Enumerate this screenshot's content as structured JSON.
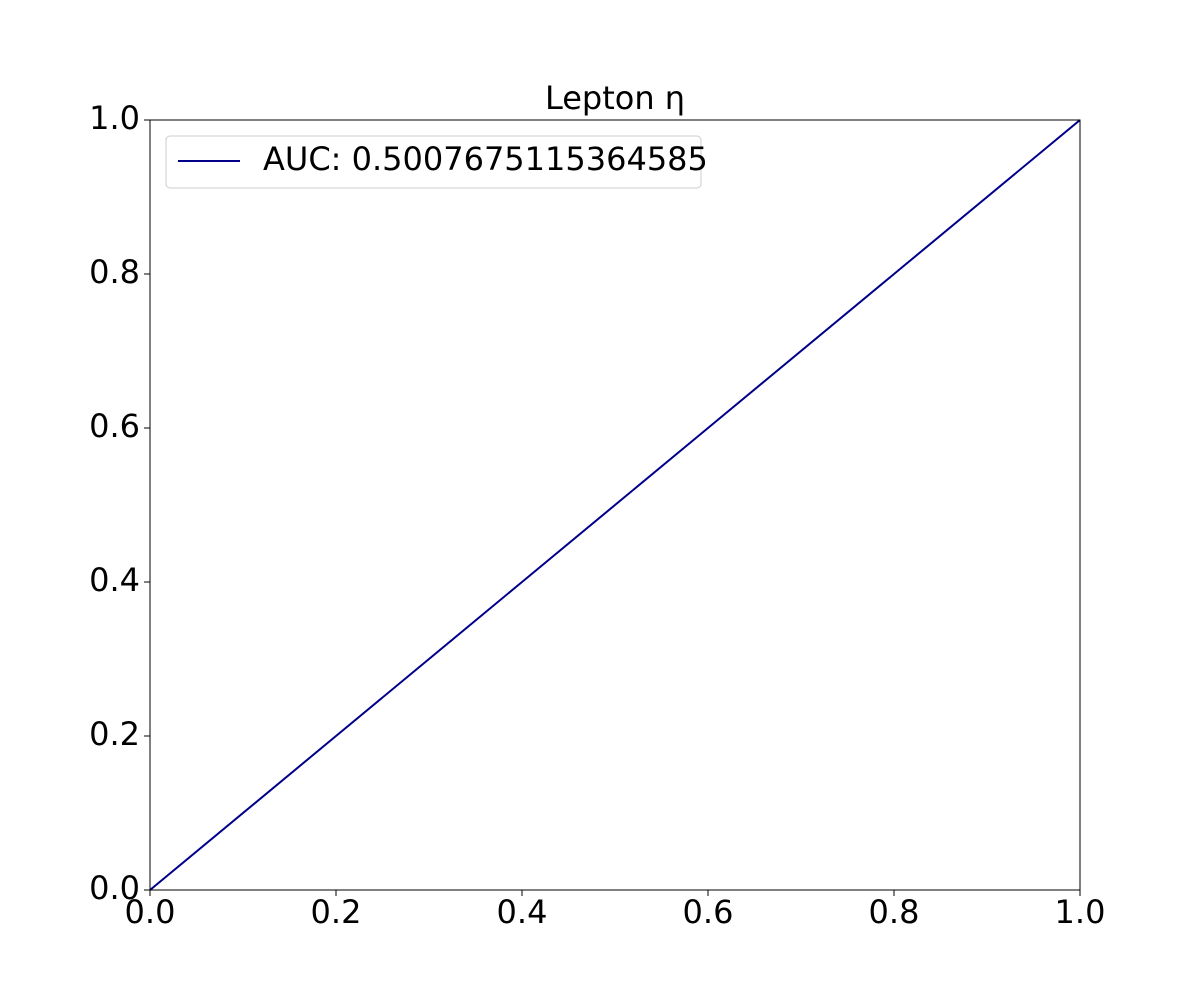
{
  "chart_data": {
    "type": "line",
    "title": "Lepton η",
    "series": [
      {
        "name": "AUC: 0.5007675115364585",
        "color": "#00008b",
        "x": [
          0,
          0.2,
          0.4,
          0.6,
          0.8,
          1
        ],
        "values": [
          0,
          0.2,
          0.4,
          0.6,
          0.8,
          1
        ]
      },
      {
        "color": "#808080",
        "dashed": true,
        "x": [
          0,
          1
        ],
        "values": [
          0,
          1
        ]
      }
    ],
    "xlim": [
      0,
      1
    ],
    "ylim": [
      0,
      1
    ],
    "xticks": [
      {
        "value": 0,
        "label": "0.0"
      },
      0.2,
      0.4,
      0.6,
      0.8,
      {
        "value": 1,
        "label": "1.0"
      }
    ],
    "yticks": [
      {
        "value": 0,
        "label": "0.0"
      },
      0.2,
      0.4,
      0.6,
      0.8,
      {
        "value": 1,
        "label": "1.0"
      }
    ],
    "legend": "upper-left"
  }
}
